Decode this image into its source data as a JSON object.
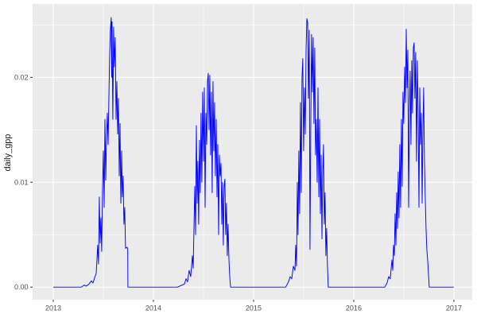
{
  "colors": {
    "panel_background": "#EBEBEB",
    "grid_major": "#FFFFFF",
    "grid_minor": "#FFFFFF",
    "tick_mark": "#333333",
    "tick_label": "#4d4d4d",
    "axis_title": "#1a1a1a",
    "line": "#0000FF",
    "figure_background": "#FFFFFF"
  },
  "chart_data": {
    "type": "line",
    "title": "",
    "xlabel": "",
    "ylabel": "daily_gpp",
    "legend": "none",
    "grid": true,
    "theme": "ggplot-gray",
    "line_color": "#0000FF",
    "xlim": [
      2012.794,
      2017.183
    ],
    "ylim": [
      -0.0012,
      0.027
    ],
    "x_ticks": [
      {
        "t": 2013,
        "label": "2013"
      },
      {
        "t": 2014,
        "label": "2014"
      },
      {
        "t": 2015,
        "label": "2015"
      },
      {
        "t": 2016,
        "label": "2016"
      },
      {
        "t": 2017,
        "label": "2017"
      }
    ],
    "y_ticks": [
      {
        "v": 0.0,
        "label": "0.00"
      },
      {
        "v": 0.01,
        "label": "0.01"
      },
      {
        "v": 0.02,
        "label": "0.02"
      }
    ],
    "x_minor": [
      2013.5,
      2014.5,
      2015.5,
      2016.5
    ],
    "y_minor": [
      0.005,
      0.015,
      0.025
    ],
    "points": [
      [
        2013.0,
        0
      ],
      [
        2013.28,
        0
      ],
      [
        2013.31,
        0.0002
      ],
      [
        2013.33,
        0.0001
      ],
      [
        2013.357,
        0.0003
      ],
      [
        2013.381,
        0.0006
      ],
      [
        2013.397,
        0.0004
      ],
      [
        2013.413,
        0.0009
      ],
      [
        2013.429,
        0.0013
      ],
      [
        2013.444,
        0.004
      ],
      [
        2013.452,
        0.0022
      ],
      [
        2013.46,
        0.0086
      ],
      [
        2013.468,
        0.0042
      ],
      [
        2013.476,
        0.0066
      ],
      [
        2013.484,
        0.0034
      ],
      [
        2013.492,
        0.0092
      ],
      [
        2013.5,
        0.013
      ],
      [
        2013.508,
        0.0076
      ],
      [
        2013.516,
        0.016
      ],
      [
        2013.524,
        0.0102
      ],
      [
        2013.532,
        0.0142
      ],
      [
        2013.54,
        0.0166
      ],
      [
        2013.548,
        0.0136
      ],
      [
        2013.556,
        0.0182
      ],
      [
        2013.563,
        0.0221
      ],
      [
        2013.571,
        0.0246
      ],
      [
        2013.579,
        0.0257
      ],
      [
        2013.583,
        0.02
      ],
      [
        2013.587,
        0.0253
      ],
      [
        2013.595,
        0.016
      ],
      [
        2013.603,
        0.0248
      ],
      [
        2013.611,
        0.021
      ],
      [
        2013.619,
        0.0238
      ],
      [
        2013.627,
        0.016
      ],
      [
        2013.635,
        0.0196
      ],
      [
        2013.643,
        0.0146
      ],
      [
        2013.651,
        0.018
      ],
      [
        2013.659,
        0.0106
      ],
      [
        2013.667,
        0.0156
      ],
      [
        2013.675,
        0.008
      ],
      [
        2013.683,
        0.013
      ],
      [
        2013.69,
        0.0086
      ],
      [
        2013.698,
        0.0106
      ],
      [
        2013.706,
        0.006
      ],
      [
        2013.714,
        0.0076
      ],
      [
        2013.722,
        0.0037
      ],
      [
        2013.738,
        0.0038
      ],
      [
        2013.744,
        0.0036
      ],
      [
        2013.746,
        0.0
      ],
      [
        2013.82,
        0
      ],
      [
        2014.0,
        0
      ],
      [
        2014.24,
        0
      ],
      [
        2014.31,
        0.0003
      ],
      [
        2014.326,
        0.0008
      ],
      [
        2014.341,
        0.0005
      ],
      [
        2014.357,
        0.0016
      ],
      [
        2014.373,
        0.001
      ],
      [
        2014.389,
        0.003
      ],
      [
        2014.397,
        0.0018
      ],
      [
        2014.413,
        0.0096
      ],
      [
        2014.421,
        0.005
      ],
      [
        2014.429,
        0.0154
      ],
      [
        2014.437,
        0.008
      ],
      [
        2014.444,
        0.012
      ],
      [
        2014.452,
        0.006
      ],
      [
        2014.46,
        0.014
      ],
      [
        2014.468,
        0.009
      ],
      [
        2014.476,
        0.0166
      ],
      [
        2014.484,
        0.01
      ],
      [
        2014.492,
        0.0186
      ],
      [
        2014.5,
        0.012
      ],
      [
        2014.508,
        0.019
      ],
      [
        2014.516,
        0.0076
      ],
      [
        2014.524,
        0.0166
      ],
      [
        2014.532,
        0.0136
      ],
      [
        2014.54,
        0.0196
      ],
      [
        2014.548,
        0.0204
      ],
      [
        2014.556,
        0.015
      ],
      [
        2014.563,
        0.0202
      ],
      [
        2014.571,
        0.0126
      ],
      [
        2014.579,
        0.0186
      ],
      [
        2014.587,
        0.009
      ],
      [
        2014.595,
        0.0196
      ],
      [
        2014.603,
        0.013
      ],
      [
        2014.611,
        0.0176
      ],
      [
        2014.619,
        0.0106
      ],
      [
        2014.627,
        0.016
      ],
      [
        2014.635,
        0.0086
      ],
      [
        2014.643,
        0.0136
      ],
      [
        2014.651,
        0.005
      ],
      [
        2014.659,
        0.0126
      ],
      [
        2014.667,
        0.0106
      ],
      [
        2014.675,
        0.0118
      ],
      [
        2014.683,
        0.006
      ],
      [
        2014.69,
        0.01
      ],
      [
        2014.698,
        0.004
      ],
      [
        2014.706,
        0.0096
      ],
      [
        2014.714,
        0.0103
      ],
      [
        2014.722,
        0.005
      ],
      [
        2014.73,
        0.008
      ],
      [
        2014.738,
        0.003
      ],
      [
        2014.746,
        0.006
      ],
      [
        2014.754,
        0.0026
      ],
      [
        2014.762,
        0.001
      ],
      [
        2014.77,
        0
      ],
      [
        2014.85,
        0
      ],
      [
        2015.0,
        0
      ],
      [
        2015.32,
        0
      ],
      [
        2015.349,
        0.0005
      ],
      [
        2015.365,
        0.001
      ],
      [
        2015.381,
        0.0008
      ],
      [
        2015.397,
        0.002
      ],
      [
        2015.413,
        0.0016
      ],
      [
        2015.421,
        0.004
      ],
      [
        2015.429,
        0.002
      ],
      [
        2015.437,
        0.01
      ],
      [
        2015.444,
        0.005
      ],
      [
        2015.452,
        0.013
      ],
      [
        2015.46,
        0.007
      ],
      [
        2015.468,
        0.0176
      ],
      [
        2015.476,
        0.009
      ],
      [
        2015.484,
        0.02
      ],
      [
        2015.492,
        0.0218
      ],
      [
        2015.5,
        0.013
      ],
      [
        2015.508,
        0.019
      ],
      [
        2015.516,
        0.0146
      ],
      [
        2015.524,
        0.0226
      ],
      [
        2015.532,
        0.0256
      ],
      [
        2015.54,
        0.0252
      ],
      [
        2015.548,
        0.018
      ],
      [
        2015.556,
        0.0245
      ],
      [
        2015.563,
        0.0036
      ],
      [
        2015.571,
        0.015
      ],
      [
        2015.579,
        0.0241
      ],
      [
        2015.587,
        0.0186
      ],
      [
        2015.595,
        0.0238
      ],
      [
        2015.603,
        0.0156
      ],
      [
        2015.611,
        0.0228
      ],
      [
        2015.619,
        0.0126
      ],
      [
        2015.627,
        0.016
      ],
      [
        2015.635,
        0.01
      ],
      [
        2015.643,
        0.019
      ],
      [
        2015.651,
        0.0086
      ],
      [
        2015.659,
        0.016
      ],
      [
        2015.667,
        0.007
      ],
      [
        2015.675,
        0.0126
      ],
      [
        2015.683,
        0.0046
      ],
      [
        2015.69,
        0.0106
      ],
      [
        2015.698,
        0.0136
      ],
      [
        2015.706,
        0.006
      ],
      [
        2015.714,
        0.009
      ],
      [
        2015.722,
        0.003
      ],
      [
        2015.73,
        0.0056
      ],
      [
        2015.738,
        0.002
      ],
      [
        2015.746,
        0
      ],
      [
        2015.85,
        0
      ],
      [
        2016.0,
        0
      ],
      [
        2016.31,
        0
      ],
      [
        2016.333,
        0.0004
      ],
      [
        2016.349,
        0.001
      ],
      [
        2016.365,
        0.0008
      ],
      [
        2016.381,
        0.0026
      ],
      [
        2016.389,
        0.0016
      ],
      [
        2016.397,
        0.004
      ],
      [
        2016.405,
        0.003
      ],
      [
        2016.413,
        0.007
      ],
      [
        2016.421,
        0.004
      ],
      [
        2016.429,
        0.009
      ],
      [
        2016.437,
        0.0056
      ],
      [
        2016.444,
        0.011
      ],
      [
        2016.452,
        0.0066
      ],
      [
        2016.46,
        0.0136
      ],
      [
        2016.468,
        0.0076
      ],
      [
        2016.476,
        0.016
      ],
      [
        2016.484,
        0.0096
      ],
      [
        2016.492,
        0.0186
      ],
      [
        2016.5,
        0.0156
      ],
      [
        2016.508,
        0.021
      ],
      [
        2016.516,
        0.0176
      ],
      [
        2016.524,
        0.0246
      ],
      [
        2016.532,
        0.019
      ],
      [
        2016.54,
        0.0226
      ],
      [
        2016.548,
        0.0076
      ],
      [
        2016.556,
        0.017
      ],
      [
        2016.563,
        0.0206
      ],
      [
        2016.571,
        0.0136
      ],
      [
        2016.579,
        0.0216
      ],
      [
        2016.587,
        0.0166
      ],
      [
        2016.595,
        0.0228
      ],
      [
        2016.603,
        0.0233
      ],
      [
        2016.611,
        0.018
      ],
      [
        2016.619,
        0.0224
      ],
      [
        2016.627,
        0.012
      ],
      [
        2016.635,
        0.0216
      ],
      [
        2016.643,
        0.0166
      ],
      [
        2016.651,
        0.0076
      ],
      [
        2016.659,
        0.019
      ],
      [
        2016.667,
        0.0136
      ],
      [
        2016.675,
        0.0166
      ],
      [
        2016.683,
        0.008
      ],
      [
        2016.69,
        0.0146
      ],
      [
        2016.698,
        0.019
      ],
      [
        2016.706,
        0.012
      ],
      [
        2016.714,
        0.0086
      ],
      [
        2016.722,
        0.0056
      ],
      [
        2016.73,
        0.0036
      ],
      [
        2016.738,
        0.0026
      ],
      [
        2016.746,
        0.0013
      ],
      [
        2016.754,
        0
      ],
      [
        2016.9,
        0
      ],
      [
        2017.0,
        0
      ]
    ]
  }
}
